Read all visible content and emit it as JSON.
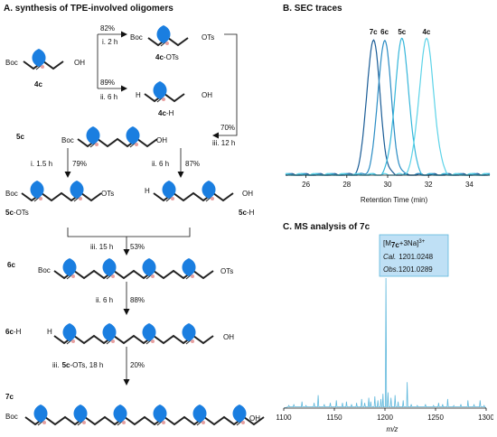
{
  "panels": {
    "a": {
      "title": "A. synthesis of TPE-involved oligomers"
    },
    "b": {
      "title": "B. SEC traces"
    },
    "c": {
      "title": "C. MS analysis of 7c"
    }
  },
  "scheme": {
    "groups": {
      "boc": "Boc",
      "oh": "OH",
      "ots": "OTs",
      "h": "H"
    },
    "compounds": {
      "c4": "4c",
      "c4_ots_a": "4c",
      "c4_ots_b": "-OTs",
      "c4_h_a": "4c",
      "c4_h_b": "-H",
      "c5": "5c",
      "c5_ots_a": "5c",
      "c5_ots_b": "-OTs",
      "c5_h_a": "5c",
      "c5_h_b": "-H",
      "c6": "6c",
      "c6_h_a": "6c",
      "c6_h_b": "-H",
      "c7": "7c"
    },
    "conditions": {
      "s1_yield": "82%",
      "s1_cond": "i. 2 h",
      "s2_yield": "89%",
      "s2_cond": "ii. 6 h",
      "s3_yield": "70%",
      "s3_cond": "iii. 12 h",
      "s4": "i. 1.5 h",
      "s4_yield": "79%",
      "s5": "ii. 6 h",
      "s5_yield": "87%",
      "s6": "iii. 15 h",
      "s6_yield": "53%",
      "s7": "ii. 6 h",
      "s7_yield": "88%",
      "s8_a": "iii.",
      "s8_b": "5c",
      "s8_c": "-OTs, 18 h",
      "s8_yield": "20%"
    }
  },
  "chart_data": [
    {
      "type": "line",
      "title": "B. SEC traces",
      "xlabel": "Retention Time (min)",
      "ylabel": "",
      "xlim": [
        25,
        35
      ],
      "xticks": [
        26,
        28,
        30,
        32,
        34
      ],
      "grid": false,
      "series": [
        {
          "name": "7c",
          "color": "#1a5c96",
          "peak": 29.3,
          "height": 1.0,
          "width": 0.32
        },
        {
          "name": "6c",
          "color": "#2a8cc4",
          "peak": 29.85,
          "height": 1.0,
          "width": 0.32
        },
        {
          "name": "5c",
          "color": "#35b6da",
          "peak": 30.7,
          "height": 1.0,
          "width": 0.34
        },
        {
          "name": "4c",
          "color": "#5cd3e8",
          "peak": 31.9,
          "height": 1.0,
          "width": 0.36
        }
      ]
    },
    {
      "type": "line",
      "title": "C. MS analysis of 7c",
      "xlabel": "m/z",
      "ylabel": "",
      "xlim": [
        1100,
        1300
      ],
      "xticks": [
        1100,
        1150,
        1200,
        1250,
        1300
      ],
      "grid": false,
      "color": "#5fb8dc",
      "annotation": {
        "ion_base": "[M",
        "ion_sub": "7c",
        "ion_tail": "+3Na]",
        "ion_sup": "3+",
        "cal_label": "Cal.",
        "cal_value": "1201.0248",
        "obs_label": "Obs.",
        "obs_value": "1201.0289",
        "fill": "#bfe0f5",
        "border": "#5fb8dc"
      },
      "peaks": [
        {
          "x": 1105,
          "y": 0.02
        },
        {
          "x": 1110,
          "y": 0.03
        },
        {
          "x": 1118,
          "y": 0.05
        },
        {
          "x": 1122,
          "y": 0.02
        },
        {
          "x": 1130,
          "y": 0.04
        },
        {
          "x": 1134,
          "y": 0.1
        },
        {
          "x": 1140,
          "y": 0.03
        },
        {
          "x": 1146,
          "y": 0.04
        },
        {
          "x": 1152,
          "y": 0.06
        },
        {
          "x": 1158,
          "y": 0.04
        },
        {
          "x": 1162,
          "y": 0.05
        },
        {
          "x": 1167,
          "y": 0.03
        },
        {
          "x": 1172,
          "y": 0.04
        },
        {
          "x": 1177,
          "y": 0.07
        },
        {
          "x": 1180,
          "y": 0.04
        },
        {
          "x": 1184,
          "y": 0.08
        },
        {
          "x": 1186,
          "y": 0.05
        },
        {
          "x": 1190,
          "y": 0.09
        },
        {
          "x": 1193,
          "y": 0.06
        },
        {
          "x": 1196,
          "y": 0.07
        },
        {
          "x": 1198,
          "y": 0.11
        },
        {
          "x": 1201,
          "y": 1.0
        },
        {
          "x": 1203,
          "y": 0.12
        },
        {
          "x": 1206,
          "y": 0.08
        },
        {
          "x": 1210,
          "y": 0.1
        },
        {
          "x": 1213,
          "y": 0.05
        },
        {
          "x": 1218,
          "y": 0.06
        },
        {
          "x": 1222,
          "y": 0.2
        },
        {
          "x": 1226,
          "y": 0.03
        },
        {
          "x": 1232,
          "y": 0.02
        },
        {
          "x": 1240,
          "y": 0.03
        },
        {
          "x": 1248,
          "y": 0.02
        },
        {
          "x": 1253,
          "y": 0.04
        },
        {
          "x": 1257,
          "y": 0.03
        },
        {
          "x": 1262,
          "y": 0.07
        },
        {
          "x": 1268,
          "y": 0.02
        },
        {
          "x": 1275,
          "y": 0.03
        },
        {
          "x": 1282,
          "y": 0.06
        },
        {
          "x": 1288,
          "y": 0.03
        },
        {
          "x": 1294,
          "y": 0.06
        },
        {
          "x": 1298,
          "y": 0.02
        }
      ]
    }
  ]
}
